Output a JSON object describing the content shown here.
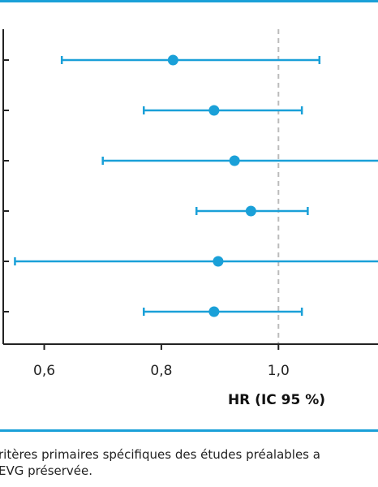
{
  "colors": {
    "accent": "#1aa0d8",
    "reference": "#bbbbbb",
    "axis": "#222222"
  },
  "chart_data": {
    "type": "forest",
    "x": {
      "label": "HR (IC 95 %)",
      "ticks": [
        "0,6",
        "0,8",
        "1,0"
      ],
      "tick_values": [
        0.6,
        0.8,
        1.0
      ],
      "range": [
        0.53,
        1.17
      ]
    },
    "reference_line": 1.0,
    "rows": [
      {
        "hr": 0.82,
        "low": 0.63,
        "high": 1.07
      },
      {
        "hr": 0.89,
        "low": 0.77,
        "high": 1.04
      },
      {
        "hr": 0.925,
        "low": 0.7,
        "high": 1.22
      },
      {
        "hr": 0.953,
        "low": 0.86,
        "high": 1.05
      },
      {
        "hr": 0.897,
        "low": 0.55,
        "high": 1.25
      },
      {
        "hr": 0.89,
        "low": 0.77,
        "high": 1.04
      }
    ]
  },
  "footnote": {
    "line1": "ritères primaires spécifiques des études préalables a",
    "line2": "EVG préservée."
  }
}
